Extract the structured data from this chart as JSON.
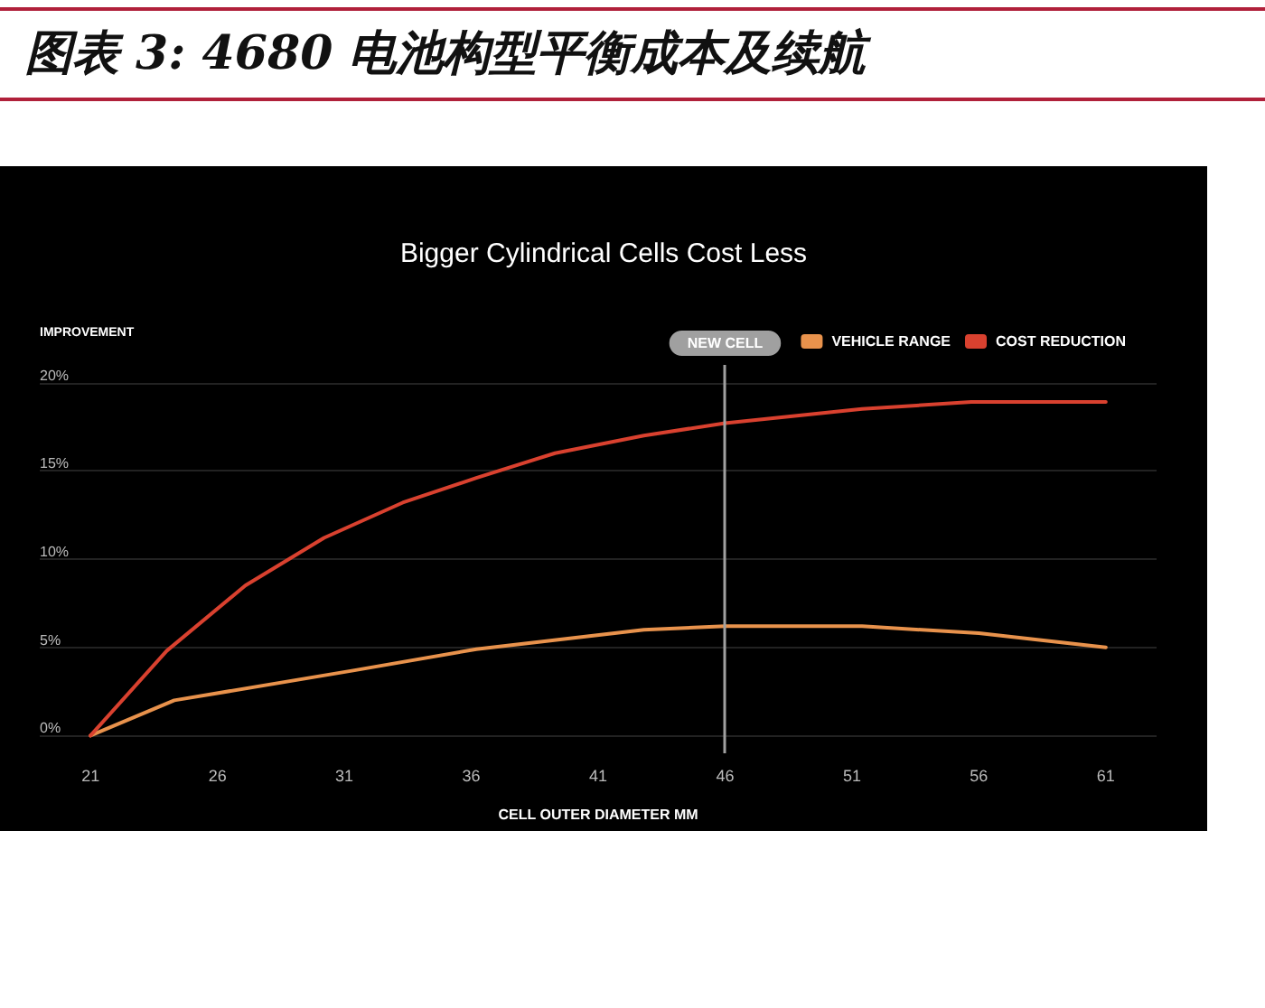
{
  "chart_data": {
    "type": "line",
    "title": "图表 3: 4680 电池构型平衡成本及续航",
    "subtitle": "Bigger Cylindrical Cells Cost Less",
    "xlabel": "CELL OUTER DIAMETER MM",
    "ylabel": "IMPROVEMENT",
    "xlim": [
      19,
      63
    ],
    "xticks": [
      21,
      26,
      31,
      36,
      41,
      46,
      51,
      56,
      61
    ],
    "ylim": [
      -1,
      21
    ],
    "yticks": [
      {
        "value": 0,
        "label": "0%"
      },
      {
        "value": 5,
        "label": "5%"
      },
      {
        "value": 10,
        "label": "10%"
      },
      {
        "value": 15,
        "label": "15%"
      },
      {
        "value": 20,
        "label": "20%"
      }
    ],
    "series": [
      {
        "name": "VEHICLE RANGE",
        "color": "#e8924c",
        "x": [
          21,
          24.3,
          31.4,
          36.2,
          42.8,
          46,
          51.4,
          56,
          61
        ],
        "values": [
          0,
          2.0,
          3.7,
          4.9,
          6.0,
          6.2,
          6.2,
          5.8,
          5.0
        ]
      },
      {
        "name": "COST REDUCTION",
        "color": "#d9412f",
        "x": [
          21,
          24,
          27.1,
          30.2,
          33.3,
          36.2,
          39.3,
          42.8,
          46,
          51.4,
          55.7,
          61
        ],
        "values": [
          0,
          4.8,
          8.5,
          11.2,
          13.2,
          14.6,
          16.0,
          17.0,
          17.7,
          18.5,
          18.9,
          18.9
        ]
      }
    ],
    "ref_lines": [
      {
        "axis": "x",
        "value": 46,
        "label": "NEW CELL",
        "color": "#a0a0a0"
      }
    ],
    "grid": "y",
    "legend": "top right",
    "marker": "none",
    "line_style": "solid"
  }
}
